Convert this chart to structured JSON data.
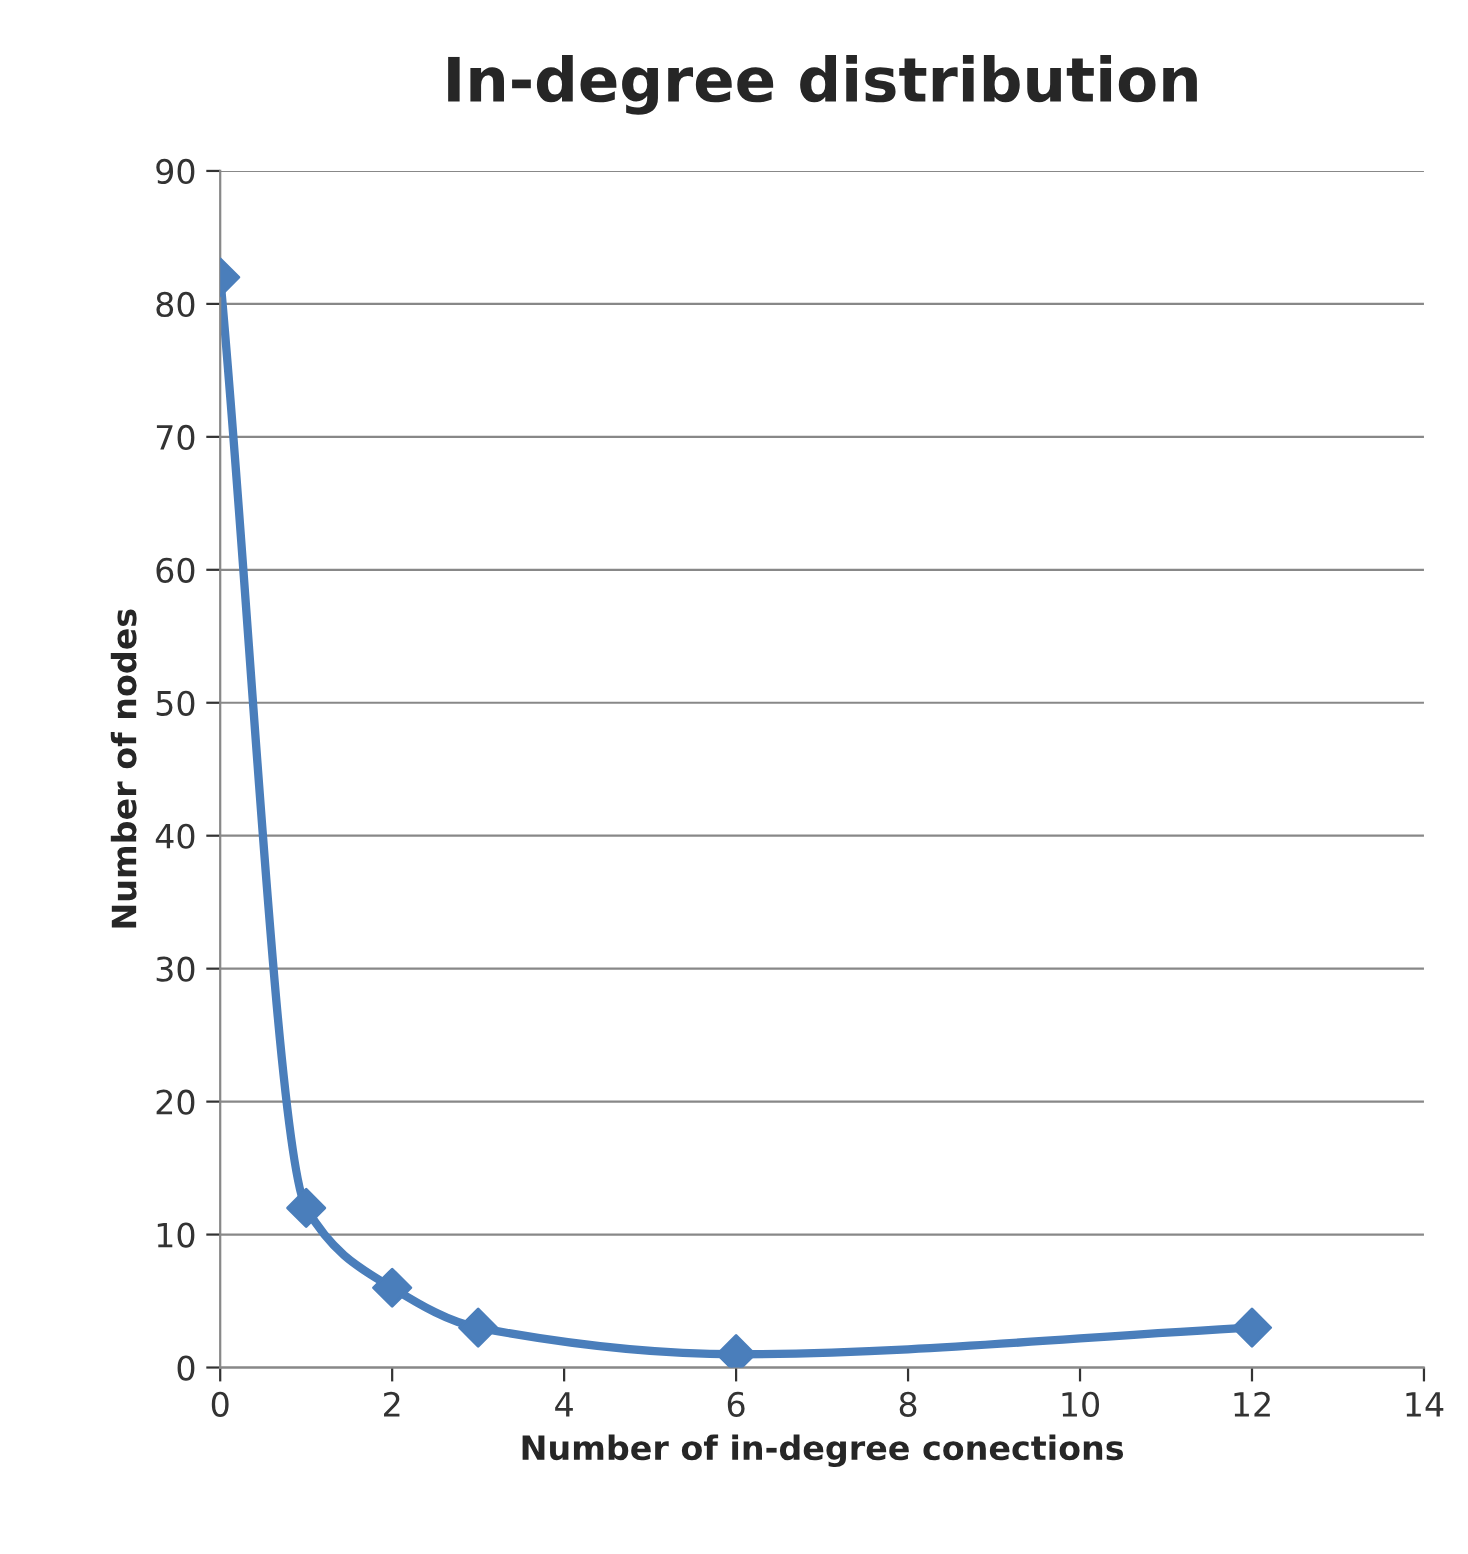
{
  "chart_data": {
    "type": "line",
    "title": "In-degree distribution",
    "xlabel": "Number of in-degree conections",
    "ylabel": "Number of nodes",
    "x": [
      0,
      1,
      2,
      3,
      6,
      12
    ],
    "series": [
      {
        "color": "#4a7ebb",
        "values": [
          82,
          12,
          6,
          3,
          1,
          3
        ]
      }
    ],
    "xlim": [
      0,
      14
    ],
    "xticks": [
      0,
      2,
      4,
      6,
      8,
      10,
      12,
      14
    ],
    "ylim": [
      0,
      90
    ],
    "yticks": [
      0,
      10,
      20,
      30,
      40,
      50,
      60,
      70,
      80,
      90
    ],
    "grid": "y",
    "legend": false,
    "marker": "diamond",
    "line_style": "solid"
  }
}
